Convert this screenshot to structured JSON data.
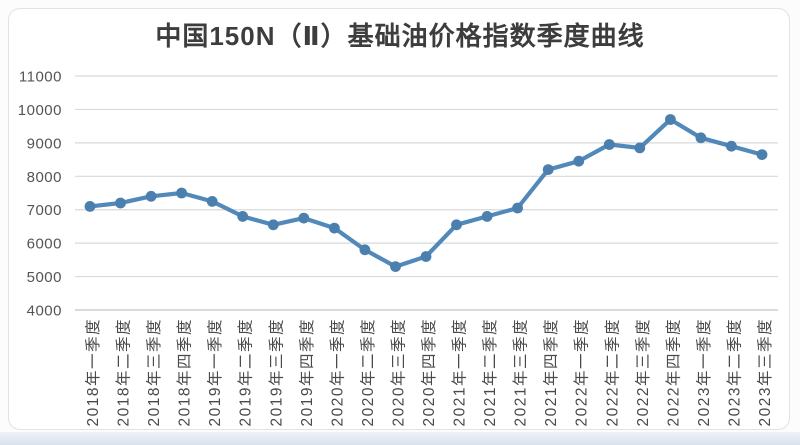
{
  "title": "中国150N（Ⅱ）基础油价格指数季度曲线",
  "chart_data": {
    "type": "line",
    "title": "中国150N（Ⅱ）基础油价格指数季度曲线",
    "categories": [
      "2018年一季度",
      "2018年二季度",
      "2018年三季度",
      "2018年四季度",
      "2019年一季度",
      "2019年二季度",
      "2019年三季度",
      "2019年四季度",
      "2020年一季度",
      "2020年二季度",
      "2020年三季度",
      "2020年四季度",
      "2021年一季度",
      "2021年二季度",
      "2021年三季度",
      "2021年四季度",
      "2022年一季度",
      "2022年二季度",
      "2022年三季度",
      "2022年四季度",
      "2023年一季度",
      "2023年二季度",
      "2023年三季度"
    ],
    "values": [
      7100,
      7200,
      7400,
      7500,
      7250,
      6800,
      6550,
      6750,
      6450,
      5800,
      5300,
      5600,
      6550,
      6800,
      7050,
      8200,
      8450,
      8950,
      8850,
      9700,
      9150,
      8900,
      8650
    ],
    "xlabel": "",
    "ylabel": "",
    "ylim": [
      4000,
      11000
    ],
    "yticks": [
      11000,
      10000,
      9000,
      8000,
      7000,
      6000,
      5000,
      4000
    ],
    "ytick_interval": 1000,
    "grid": "horizontal",
    "legend": "none",
    "colors": {
      "line": "#5189ba",
      "marker": "#4a7fae",
      "grid": "#d9d9d9",
      "axis": "#c4c4c4",
      "tick_label": "#545454",
      "title": "#3d3d3d",
      "bottom_strip": "#d8e2ee"
    }
  }
}
